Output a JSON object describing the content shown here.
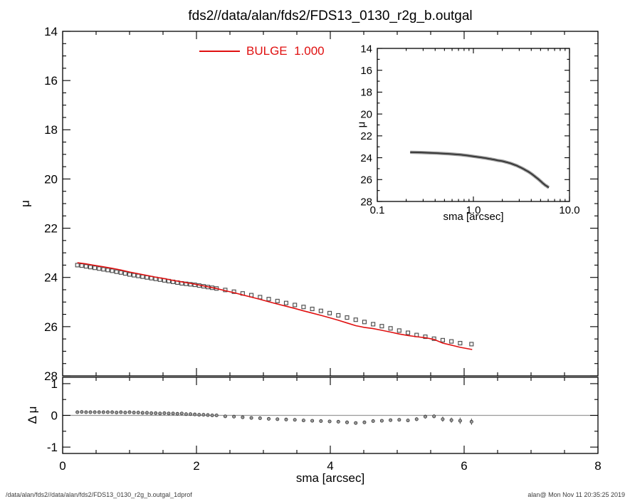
{
  "page": {
    "title": "fds2//data/alan/fds2/FDS13_0130_r2g_b.outgal",
    "footer_left": "/data/alan/fds2//data/alan/fds2/FDS13_0130_r2g_b.outgal_1dprof",
    "footer_right": "alan@  Mon Nov 11 20:35:25 2019"
  },
  "legend": {
    "label": "BULGE  1.000",
    "color": "#e01010"
  },
  "colors": {
    "model_line": "#e01010",
    "data_marker_stroke": "#4a4a4a",
    "data_marker_fill": "#f5f5f5",
    "zero_line": "#999999",
    "axis": "#000000",
    "inset_band_outer": "#9a9a9a",
    "inset_band_inner": "#333333"
  },
  "chart_data": [
    {
      "id": "main",
      "type": "scatter",
      "title": "",
      "xlabel": "",
      "ylabel": "μ",
      "xlim": [
        0,
        8
      ],
      "ylim": [
        14,
        28
      ],
      "y_inverted": true,
      "grid": false,
      "x_ticks": {
        "majors": [
          0,
          2,
          4,
          6,
          8
        ],
        "minors": [
          0.5,
          1,
          1.5,
          2.5,
          3,
          3.5,
          4.5,
          5,
          5.5,
          6.5,
          7,
          7.5
        ],
        "labels": null
      },
      "y_ticks": {
        "majors": [
          14,
          16,
          18,
          20,
          22,
          24,
          26,
          28
        ],
        "labels": [
          "14",
          "16",
          "18",
          "20",
          "22",
          "24",
          "26",
          "28"
        ],
        "minors": [
          14.5,
          15,
          15.5,
          16.5,
          17,
          17.5,
          18.5,
          19,
          19.5,
          20.5,
          21,
          21.5,
          22.5,
          23,
          23.5,
          24.5,
          25,
          25.5,
          26.5,
          27,
          27.5
        ]
      },
      "series": [
        {
          "name": "observed-profile",
          "kind": "squares",
          "x": [
            0.22,
            0.285,
            0.35,
            0.415,
            0.48,
            0.545,
            0.61,
            0.675,
            0.74,
            0.805,
            0.87,
            0.935,
            1.0,
            1.065,
            1.13,
            1.195,
            1.26,
            1.325,
            1.39,
            1.455,
            1.52,
            1.585,
            1.65,
            1.715,
            1.78,
            1.845,
            1.91,
            1.975,
            2.04,
            2.105,
            2.17,
            2.235,
            2.3,
            2.43,
            2.56,
            2.69,
            2.82,
            2.95,
            3.08,
            3.21,
            3.34,
            3.47,
            3.6,
            3.73,
            3.86,
            3.99,
            4.12,
            4.25,
            4.38,
            4.51,
            4.64,
            4.77,
            4.9,
            5.03,
            5.16,
            5.29,
            5.42,
            5.55,
            5.68,
            5.81,
            5.94,
            6.11
          ],
          "y": [
            23.5,
            23.52,
            23.55,
            23.58,
            23.61,
            23.64,
            23.67,
            23.7,
            23.73,
            23.77,
            23.8,
            23.84,
            23.88,
            23.91,
            23.94,
            23.97,
            24.0,
            24.03,
            24.06,
            24.09,
            24.12,
            24.15,
            24.18,
            24.21,
            24.24,
            24.26,
            24.28,
            24.3,
            24.33,
            24.36,
            24.39,
            24.42,
            24.45,
            24.51,
            24.58,
            24.65,
            24.72,
            24.8,
            24.88,
            24.96,
            25.04,
            25.12,
            25.2,
            25.28,
            25.36,
            25.45,
            25.54,
            25.63,
            25.72,
            25.81,
            25.9,
            25.98,
            26.07,
            26.16,
            26.25,
            26.34,
            26.41,
            26.49,
            26.55,
            26.6,
            26.67,
            26.71
          ]
        },
        {
          "name": "bulge-model",
          "kind": "line",
          "legend": "BULGE  1.000",
          "color": "#e01010",
          "x": [
            0.22,
            0.35,
            0.48,
            0.61,
            0.74,
            0.87,
            1.0,
            1.13,
            1.26,
            1.39,
            1.52,
            1.65,
            1.78,
            1.91,
            2.04,
            2.17,
            2.3,
            2.43,
            2.56,
            2.69,
            2.82,
            2.95,
            3.08,
            3.21,
            3.34,
            3.47,
            3.6,
            3.73,
            3.86,
            3.99,
            4.12,
            4.25,
            4.38,
            4.51,
            4.64,
            4.77,
            4.9,
            5.03,
            5.16,
            5.29,
            5.42,
            5.55,
            5.68,
            5.81,
            5.94,
            6.12
          ],
          "y": [
            23.4,
            23.45,
            23.51,
            23.57,
            23.63,
            23.7,
            23.78,
            23.85,
            23.92,
            23.99,
            24.05,
            24.12,
            24.18,
            24.24,
            24.31,
            24.38,
            24.45,
            24.54,
            24.62,
            24.71,
            24.8,
            24.89,
            24.99,
            25.08,
            25.17,
            25.26,
            25.36,
            25.45,
            25.54,
            25.64,
            25.74,
            25.85,
            25.96,
            26.03,
            26.08,
            26.15,
            26.22,
            26.3,
            26.36,
            26.41,
            26.45,
            26.52,
            26.67,
            26.75,
            26.84,
            26.93
          ]
        }
      ]
    },
    {
      "id": "inset",
      "type": "line",
      "title": "",
      "xlabel": "sma [arcsec]",
      "ylabel": "μ",
      "xscale": "log",
      "xlim": [
        0.1,
        10
      ],
      "ylim": [
        14,
        28
      ],
      "y_inverted": true,
      "grid": false,
      "x_ticks": {
        "majors": [
          0.1,
          1,
          10
        ],
        "labels": [
          "0.1",
          "1.0",
          "10.0"
        ],
        "minors": [
          0.2,
          0.3,
          0.4,
          0.5,
          0.6,
          0.7,
          0.8,
          0.9,
          2,
          3,
          4,
          5,
          6,
          7,
          8,
          9
        ]
      },
      "y_ticks": {
        "majors": [
          14,
          16,
          18,
          20,
          22,
          24,
          26,
          28
        ],
        "labels": [
          "14",
          "16",
          "18",
          "20",
          "22",
          "24",
          "26",
          "28"
        ],
        "minors": [
          15,
          17,
          19,
          21,
          23,
          25,
          27
        ]
      },
      "series": [
        {
          "name": "observed-profile-log",
          "kind": "band",
          "ref": [
            0,
            0
          ]
        }
      ]
    },
    {
      "id": "residual",
      "type": "scatter",
      "title": "",
      "xlabel": "sma [arcsec]",
      "ylabel": "Δ μ",
      "xlim": [
        0,
        8
      ],
      "ylim": [
        -1.2,
        1.2
      ],
      "y_inverted": false,
      "grid": false,
      "hline": 0,
      "x_ticks": {
        "majors": [
          0,
          2,
          4,
          6,
          8
        ],
        "labels": [
          "0",
          "2",
          "4",
          "6",
          "8"
        ],
        "minors": [
          0.5,
          1,
          1.5,
          2.5,
          3,
          3.5,
          4.5,
          5,
          5.5,
          6.5,
          7,
          7.5
        ]
      },
      "y_ticks": {
        "majors": [
          -1,
          0,
          1
        ],
        "labels": [
          "-1",
          "0",
          "1"
        ],
        "minors": [
          -0.5,
          0.5
        ]
      },
      "series": [
        {
          "name": "residuals",
          "kind": "dots",
          "x": [
            0.22,
            0.285,
            0.35,
            0.415,
            0.48,
            0.545,
            0.61,
            0.675,
            0.74,
            0.805,
            0.87,
            0.935,
            1.0,
            1.065,
            1.13,
            1.195,
            1.26,
            1.325,
            1.39,
            1.455,
            1.52,
            1.585,
            1.65,
            1.715,
            1.78,
            1.845,
            1.91,
            1.975,
            2.04,
            2.105,
            2.17,
            2.235,
            2.3,
            2.43,
            2.56,
            2.69,
            2.82,
            2.95,
            3.08,
            3.21,
            3.34,
            3.47,
            3.6,
            3.73,
            3.86,
            3.99,
            4.12,
            4.25,
            4.38,
            4.51,
            4.64,
            4.77,
            4.9,
            5.03,
            5.16,
            5.29,
            5.42,
            5.55,
            5.68,
            5.81,
            5.94,
            6.11
          ],
          "y": [
            0.1,
            0.11,
            0.1,
            0.1,
            0.1,
            0.1,
            0.1,
            0.1,
            0.1,
            0.09,
            0.1,
            0.09,
            0.1,
            0.09,
            0.09,
            0.08,
            0.08,
            0.07,
            0.07,
            0.06,
            0.07,
            0.06,
            0.06,
            0.05,
            0.06,
            0.04,
            0.04,
            0.03,
            0.02,
            0.02,
            0.01,
            0.0,
            0.0,
            -0.03,
            -0.04,
            -0.06,
            -0.08,
            -0.09,
            -0.11,
            -0.12,
            -0.13,
            -0.14,
            -0.16,
            -0.17,
            -0.18,
            -0.19,
            -0.2,
            -0.22,
            -0.24,
            -0.22,
            -0.18,
            -0.17,
            -0.15,
            -0.14,
            -0.16,
            -0.12,
            -0.04,
            -0.03,
            -0.12,
            -0.15,
            -0.17,
            -0.2
          ],
          "yerr": [
            0.01,
            0.01,
            0.01,
            0.01,
            0.01,
            0.01,
            0.01,
            0.01,
            0.01,
            0.01,
            0.01,
            0.01,
            0.01,
            0.01,
            0.01,
            0.01,
            0.01,
            0.01,
            0.01,
            0.01,
            0.01,
            0.01,
            0.01,
            0.01,
            0.01,
            0.01,
            0.01,
            0.01,
            0.01,
            0.01,
            0.01,
            0.01,
            0.01,
            0.02,
            0.02,
            0.02,
            0.02,
            0.02,
            0.02,
            0.02,
            0.03,
            0.03,
            0.03,
            0.03,
            0.03,
            0.03,
            0.03,
            0.04,
            0.04,
            0.04,
            0.04,
            0.05,
            0.05,
            0.05,
            0.05,
            0.06,
            0.06,
            0.06,
            0.08,
            0.08,
            0.1,
            0.1
          ]
        }
      ]
    }
  ]
}
